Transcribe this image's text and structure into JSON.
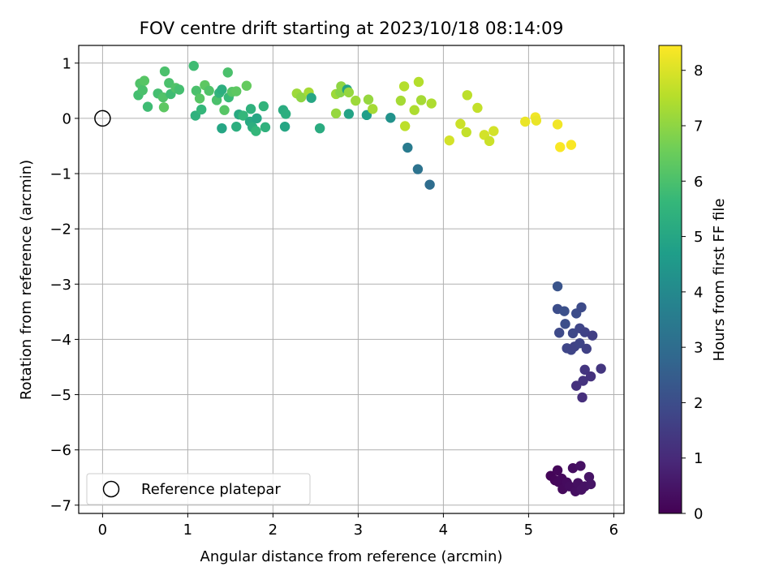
{
  "chart_data": {
    "type": "scatter",
    "title": "FOV centre drift starting at 2023/10/18 08:14:09",
    "xlabel": "Angular distance from reference (arcmin)",
    "ylabel": "Rotation from reference (arcmin)",
    "xlim": [
      -0.28,
      6.12
    ],
    "ylim": [
      -7.15,
      1.32
    ],
    "xticks": [
      0,
      1,
      2,
      3,
      4,
      5,
      6
    ],
    "yticks": [
      1,
      0,
      -1,
      -2,
      -3,
      -4,
      -5,
      -6,
      -7
    ],
    "grid": true,
    "legend": {
      "placement": "lower-left",
      "entries": [
        "Reference platepar"
      ]
    },
    "reference_point": {
      "x": 0,
      "y": 0,
      "label": "Reference platepar"
    },
    "colorbar": {
      "label": "Hours from first FF file",
      "range": [
        0,
        8.45
      ],
      "ticks": [
        0,
        1,
        2,
        3,
        4,
        5,
        6,
        7,
        8
      ],
      "colormap": [
        "#440154",
        "#482878",
        "#3e4989",
        "#31688e",
        "#26828e",
        "#1f9e89",
        "#35b779",
        "#6ece58",
        "#b5de2b",
        "#fde725"
      ]
    },
    "points": [
      {
        "x": 5.26,
        "y": -6.47,
        "t": 0.1
      },
      {
        "x": 5.31,
        "y": -6.55,
        "t": 0.12
      },
      {
        "x": 5.34,
        "y": -6.37,
        "t": 0.15
      },
      {
        "x": 5.35,
        "y": -6.58,
        "t": 0.18
      },
      {
        "x": 5.39,
        "y": -6.52,
        "t": 0.2
      },
      {
        "x": 5.4,
        "y": -6.71,
        "t": 0.22
      },
      {
        "x": 5.45,
        "y": -6.59,
        "t": 0.25
      },
      {
        "x": 5.48,
        "y": -6.66,
        "t": 0.28
      },
      {
        "x": 5.52,
        "y": -6.33,
        "t": 0.3
      },
      {
        "x": 5.55,
        "y": -6.75,
        "t": 0.33
      },
      {
        "x": 5.58,
        "y": -6.6,
        "t": 0.35
      },
      {
        "x": 5.61,
        "y": -6.29,
        "t": 0.38
      },
      {
        "x": 5.62,
        "y": -6.72,
        "t": 0.4
      },
      {
        "x": 5.66,
        "y": -6.66,
        "t": 0.42
      },
      {
        "x": 5.71,
        "y": -6.49,
        "t": 0.45
      },
      {
        "x": 5.73,
        "y": -6.62,
        "t": 0.48
      },
      {
        "x": 5.56,
        "y": -4.84,
        "t": 1.2
      },
      {
        "x": 5.63,
        "y": -5.05,
        "t": 1.15
      },
      {
        "x": 5.64,
        "y": -4.75,
        "t": 1.25
      },
      {
        "x": 5.66,
        "y": -4.55,
        "t": 1.3
      },
      {
        "x": 5.73,
        "y": -4.67,
        "t": 1.22
      },
      {
        "x": 5.85,
        "y": -4.53,
        "t": 1.35
      },
      {
        "x": 5.34,
        "y": -3.04,
        "t": 2.2
      },
      {
        "x": 5.34,
        "y": -3.45,
        "t": 2.0
      },
      {
        "x": 5.36,
        "y": -3.88,
        "t": 1.9
      },
      {
        "x": 5.42,
        "y": -3.49,
        "t": 2.1
      },
      {
        "x": 5.43,
        "y": -3.72,
        "t": 2.05
      },
      {
        "x": 5.45,
        "y": -4.16,
        "t": 1.8
      },
      {
        "x": 5.5,
        "y": -4.19,
        "t": 1.75
      },
      {
        "x": 5.52,
        "y": -3.89,
        "t": 1.85
      },
      {
        "x": 5.54,
        "y": -4.13,
        "t": 1.7
      },
      {
        "x": 5.56,
        "y": -3.53,
        "t": 2.0
      },
      {
        "x": 5.6,
        "y": -4.07,
        "t": 1.75
      },
      {
        "x": 5.6,
        "y": -3.8,
        "t": 1.8
      },
      {
        "x": 5.62,
        "y": -3.42,
        "t": 1.95
      },
      {
        "x": 5.66,
        "y": -3.87,
        "t": 1.7
      },
      {
        "x": 5.68,
        "y": -4.17,
        "t": 1.65
      },
      {
        "x": 5.75,
        "y": -3.93,
        "t": 1.6
      },
      {
        "x": 3.38,
        "y": 0.01,
        "t": 4.3
      },
      {
        "x": 3.58,
        "y": -0.53,
        "t": 3.5
      },
      {
        "x": 3.7,
        "y": -0.92,
        "t": 3.2
      },
      {
        "x": 3.84,
        "y": -1.2,
        "t": 3.0
      },
      {
        "x": 0.42,
        "y": 0.42,
        "t": 5.9
      },
      {
        "x": 0.44,
        "y": 0.63,
        "t": 6.1
      },
      {
        "x": 0.47,
        "y": 0.51,
        "t": 6.0
      },
      {
        "x": 0.49,
        "y": 0.68,
        "t": 6.2
      },
      {
        "x": 0.53,
        "y": 0.21,
        "t": 5.8
      },
      {
        "x": 0.65,
        "y": 0.45,
        "t": 5.9
      },
      {
        "x": 0.71,
        "y": 0.38,
        "t": 6.1
      },
      {
        "x": 0.72,
        "y": 0.2,
        "t": 6.3
      },
      {
        "x": 0.73,
        "y": 0.85,
        "t": 6.0
      },
      {
        "x": 0.78,
        "y": 0.64,
        "t": 6.0
      },
      {
        "x": 0.8,
        "y": 0.44,
        "t": 5.8
      },
      {
        "x": 0.86,
        "y": 0.55,
        "t": 6.1
      },
      {
        "x": 0.9,
        "y": 0.52,
        "t": 5.9
      },
      {
        "x": 1.07,
        "y": 0.95,
        "t": 5.8
      },
      {
        "x": 1.09,
        "y": 0.05,
        "t": 5.4
      },
      {
        "x": 1.1,
        "y": 0.5,
        "t": 6.0
      },
      {
        "x": 1.14,
        "y": 0.36,
        "t": 6.2
      },
      {
        "x": 1.16,
        "y": 0.16,
        "t": 5.6
      },
      {
        "x": 1.2,
        "y": 0.6,
        "t": 6.3
      },
      {
        "x": 1.25,
        "y": 0.5,
        "t": 6.1
      },
      {
        "x": 1.34,
        "y": 0.33,
        "t": 6.0
      },
      {
        "x": 1.37,
        "y": 0.46,
        "t": 5.5
      },
      {
        "x": 1.4,
        "y": 0.52,
        "t": 5.3
      },
      {
        "x": 1.4,
        "y": -0.18,
        "t": 5.0
      },
      {
        "x": 1.43,
        "y": 0.15,
        "t": 6.2
      },
      {
        "x": 1.47,
        "y": 0.83,
        "t": 6.0
      },
      {
        "x": 1.48,
        "y": 0.38,
        "t": 5.7
      },
      {
        "x": 1.52,
        "y": 0.48,
        "t": 6.2
      },
      {
        "x": 1.57,
        "y": 0.49,
        "t": 6.3
      },
      {
        "x": 1.57,
        "y": -0.15,
        "t": 5.3
      },
      {
        "x": 1.6,
        "y": 0.07,
        "t": 5.1
      },
      {
        "x": 1.65,
        "y": 0.05,
        "t": 5.6
      },
      {
        "x": 1.69,
        "y": 0.59,
        "t": 6.4
      },
      {
        "x": 1.73,
        "y": -0.06,
        "t": 5.1
      },
      {
        "x": 1.74,
        "y": 0.17,
        "t": 5.4
      },
      {
        "x": 1.76,
        "y": -0.16,
        "t": 5.3
      },
      {
        "x": 1.8,
        "y": -0.23,
        "t": 5.6
      },
      {
        "x": 1.81,
        "y": 0.0,
        "t": 5.0
      },
      {
        "x": 1.89,
        "y": 0.22,
        "t": 5.5
      },
      {
        "x": 1.91,
        "y": -0.16,
        "t": 5.4
      },
      {
        "x": 2.12,
        "y": 0.15,
        "t": 5.2
      },
      {
        "x": 2.14,
        "y": -0.15,
        "t": 5.0
      },
      {
        "x": 2.15,
        "y": 0.08,
        "t": 5.3
      },
      {
        "x": 2.28,
        "y": 0.45,
        "t": 7.2
      },
      {
        "x": 2.33,
        "y": 0.38,
        "t": 7.0
      },
      {
        "x": 2.42,
        "y": 0.47,
        "t": 7.3
      },
      {
        "x": 2.45,
        "y": 0.37,
        "t": 5.0
      },
      {
        "x": 2.55,
        "y": -0.18,
        "t": 5.2
      },
      {
        "x": 2.74,
        "y": 0.44,
        "t": 7.2
      },
      {
        "x": 2.74,
        "y": 0.09,
        "t": 7.1
      },
      {
        "x": 2.79,
        "y": 0.47,
        "t": 6.9
      },
      {
        "x": 2.8,
        "y": 0.58,
        "t": 7.0
      },
      {
        "x": 2.87,
        "y": 0.52,
        "t": 4.9
      },
      {
        "x": 2.89,
        "y": 0.47,
        "t": 7.1
      },
      {
        "x": 2.89,
        "y": 0.08,
        "t": 4.9
      },
      {
        "x": 2.97,
        "y": 0.32,
        "t": 7.2
      },
      {
        "x": 3.1,
        "y": 0.06,
        "t": 4.7
      },
      {
        "x": 3.12,
        "y": 0.34,
        "t": 7.1
      },
      {
        "x": 3.17,
        "y": 0.17,
        "t": 7.3
      },
      {
        "x": 3.5,
        "y": 0.32,
        "t": 7.3
      },
      {
        "x": 3.54,
        "y": 0.58,
        "t": 7.5
      },
      {
        "x": 3.55,
        "y": -0.14,
        "t": 7.6
      },
      {
        "x": 3.66,
        "y": 0.15,
        "t": 7.4
      },
      {
        "x": 3.71,
        "y": 0.66,
        "t": 7.5
      },
      {
        "x": 3.74,
        "y": 0.33,
        "t": 7.3
      },
      {
        "x": 3.86,
        "y": 0.27,
        "t": 7.4
      },
      {
        "x": 4.07,
        "y": -0.4,
        "t": 7.9
      },
      {
        "x": 4.2,
        "y": -0.1,
        "t": 7.8
      },
      {
        "x": 4.27,
        "y": -0.25,
        "t": 7.7
      },
      {
        "x": 4.28,
        "y": 0.42,
        "t": 7.6
      },
      {
        "x": 4.4,
        "y": 0.19,
        "t": 7.7
      },
      {
        "x": 4.48,
        "y": -0.3,
        "t": 7.9
      },
      {
        "x": 4.54,
        "y": -0.41,
        "t": 7.8
      },
      {
        "x": 4.59,
        "y": -0.23,
        "t": 7.9
      },
      {
        "x": 4.96,
        "y": -0.06,
        "t": 8.2
      },
      {
        "x": 5.08,
        "y": 0.02,
        "t": 8.3
      },
      {
        "x": 5.09,
        "y": -0.04,
        "t": 8.2
      },
      {
        "x": 5.34,
        "y": -0.11,
        "t": 8.3
      },
      {
        "x": 5.37,
        "y": -0.52,
        "t": 8.4
      },
      {
        "x": 5.5,
        "y": -0.48,
        "t": 8.4
      }
    ]
  }
}
